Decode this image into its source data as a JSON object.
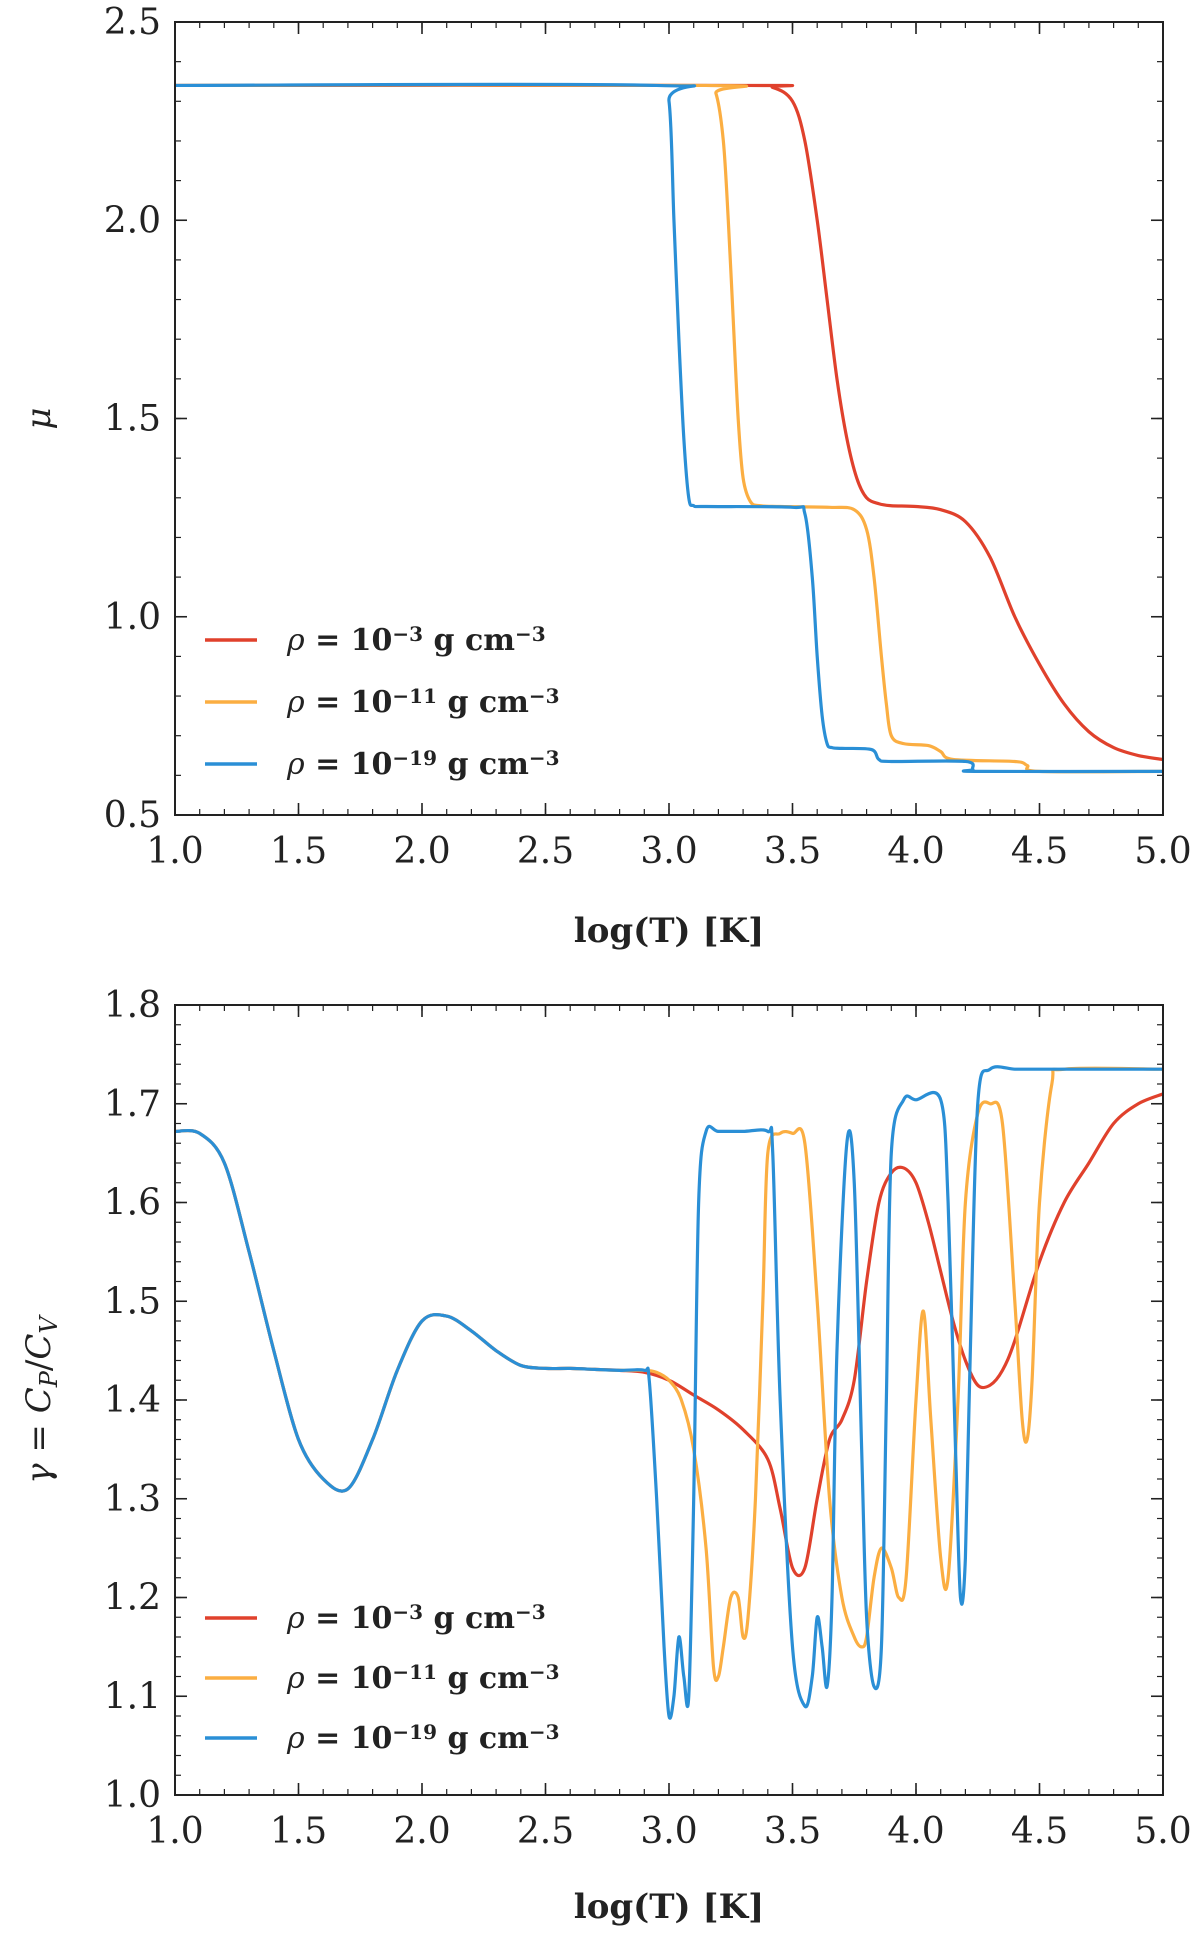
{
  "chart_data": [
    {
      "type": "line",
      "id": "top",
      "xlabel": "log(T) [K]",
      "ylabel": "μ",
      "xlim": [
        1.0,
        5.0
      ],
      "ylim": [
        0.5,
        2.5
      ],
      "xticks": [
        "1.0",
        "1.5",
        "2.0",
        "2.5",
        "3.0",
        "3.5",
        "4.0",
        "4.5",
        "5.0"
      ],
      "yticks": [
        "0.5",
        "1.0",
        "1.5",
        "2.0",
        "2.5"
      ],
      "legend_position": "lower-left",
      "series": [
        {
          "name": "ρ = 10^−3 g cm^−3",
          "rho": "ρ",
          "eq": " = ",
          "base": "10",
          "exp": "−3",
          "unit": " g cm",
          "unitexp": "−3",
          "color": "#e0412c",
          "x": [
            1.0,
            3.3,
            3.42,
            3.5,
            3.55,
            3.6,
            3.64,
            3.68,
            3.72,
            3.76,
            3.8,
            3.85,
            3.9,
            4.0,
            4.1,
            4.2,
            4.3,
            4.4,
            4.5,
            4.6,
            4.7,
            4.8,
            4.9,
            5.0
          ],
          "y": [
            2.34,
            2.34,
            2.335,
            2.3,
            2.2,
            2.0,
            1.8,
            1.6,
            1.45,
            1.35,
            1.3,
            1.285,
            1.28,
            1.278,
            1.27,
            1.24,
            1.15,
            1.0,
            0.88,
            0.78,
            0.71,
            0.67,
            0.65,
            0.64
          ]
        },
        {
          "name": "ρ = 10^−11 g cm^−3",
          "rho": "ρ",
          "eq": " = ",
          "base": "10",
          "exp": "−11",
          "unit": " g cm",
          "unitexp": "−3",
          "color": "#fbae42",
          "x": [
            1.0,
            3.15,
            3.19,
            3.22,
            3.24,
            3.26,
            3.28,
            3.3,
            3.33,
            3.37,
            3.45,
            3.65,
            3.75,
            3.8,
            3.83,
            3.86,
            3.88,
            3.9,
            3.95,
            4.05,
            4.1,
            4.15,
            4.4,
            4.45,
            4.5,
            5.0
          ],
          "y": [
            2.34,
            2.34,
            2.32,
            2.2,
            2.0,
            1.75,
            1.5,
            1.35,
            1.29,
            1.28,
            1.278,
            1.276,
            1.27,
            1.22,
            1.1,
            0.9,
            0.78,
            0.7,
            0.68,
            0.675,
            0.66,
            0.64,
            0.635,
            0.625,
            0.61,
            0.61
          ]
        },
        {
          "name": "ρ = 10^−19 g cm^−3",
          "rho": "ρ",
          "eq": " = ",
          "base": "10",
          "exp": "−19",
          "unit": " g cm",
          "unitexp": "−3",
          "color": "#2a8fd6",
          "x": [
            1.0,
            2.95,
            3.0,
            3.02,
            3.04,
            3.06,
            3.08,
            3.1,
            3.15,
            3.5,
            3.55,
            3.58,
            3.6,
            3.62,
            3.64,
            3.66,
            3.7,
            3.82,
            3.85,
            3.9,
            4.2,
            4.23,
            4.25,
            5.0
          ],
          "y": [
            2.34,
            2.34,
            2.3,
            2.0,
            1.7,
            1.45,
            1.3,
            1.28,
            1.278,
            1.276,
            1.26,
            1.1,
            0.9,
            0.75,
            0.68,
            0.67,
            0.668,
            0.665,
            0.64,
            0.635,
            0.635,
            0.615,
            0.61,
            0.61
          ]
        }
      ]
    },
    {
      "type": "line",
      "id": "bottom",
      "xlabel": "log(T) [K]",
      "ylabel": "γ = C_P/C_V",
      "ylabel_parts": {
        "gamma": "γ",
        "eq": " = ",
        "cp": "C",
        "cpsub": "P",
        "slash": "/",
        "cv": "C",
        "cvsub": "V"
      },
      "xlim": [
        1.0,
        5.0
      ],
      "ylim": [
        1.0,
        1.8
      ],
      "xticks": [
        "1.0",
        "1.5",
        "2.0",
        "2.5",
        "3.0",
        "3.5",
        "4.0",
        "4.5",
        "5.0"
      ],
      "yticks": [
        "1.0",
        "1.1",
        "1.2",
        "1.3",
        "1.4",
        "1.5",
        "1.6",
        "1.7",
        "1.8"
      ],
      "legend_position": "lower-left",
      "series": [
        {
          "name": "ρ = 10^−3 g cm^−3",
          "rho": "ρ",
          "eq": " = ",
          "base": "10",
          "exp": "−3",
          "unit": " g cm",
          "unitexp": "−3",
          "color": "#e0412c",
          "x": [
            1.0,
            1.1,
            1.2,
            1.3,
            1.4,
            1.5,
            1.6,
            1.7,
            1.8,
            1.9,
            2.0,
            2.1,
            2.2,
            2.3,
            2.4,
            2.5,
            2.6,
            2.7,
            2.8,
            2.9,
            3.0,
            3.1,
            3.2,
            3.3,
            3.4,
            3.45,
            3.5,
            3.55,
            3.6,
            3.65,
            3.7,
            3.75,
            3.8,
            3.85,
            3.9,
            3.95,
            4.0,
            4.05,
            4.1,
            4.15,
            4.2,
            4.25,
            4.3,
            4.35,
            4.4,
            4.5,
            4.6,
            4.7,
            4.8,
            4.9,
            5.0
          ],
          "y": [
            1.672,
            1.67,
            1.64,
            1.55,
            1.45,
            1.36,
            1.32,
            1.31,
            1.36,
            1.43,
            1.48,
            1.485,
            1.47,
            1.45,
            1.435,
            1.432,
            1.432,
            1.431,
            1.43,
            1.428,
            1.42,
            1.405,
            1.39,
            1.37,
            1.34,
            1.29,
            1.23,
            1.23,
            1.3,
            1.36,
            1.38,
            1.42,
            1.52,
            1.6,
            1.63,
            1.635,
            1.62,
            1.58,
            1.53,
            1.48,
            1.44,
            1.415,
            1.415,
            1.43,
            1.46,
            1.54,
            1.6,
            1.64,
            1.68,
            1.7,
            1.71
          ]
        },
        {
          "name": "ρ = 10^−11 g cm^−3",
          "rho": "ρ",
          "eq": " = ",
          "base": "10",
          "exp": "−11",
          "unit": " g cm",
          "unitexp": "−3",
          "color": "#fbae42",
          "x": [
            1.0,
            1.1,
            1.2,
            1.3,
            1.4,
            1.5,
            1.6,
            1.7,
            1.8,
            1.9,
            2.0,
            2.1,
            2.2,
            2.3,
            2.4,
            2.5,
            2.6,
            2.7,
            2.8,
            2.9,
            2.95,
            3.0,
            3.05,
            3.1,
            3.15,
            3.18,
            3.2,
            3.22,
            3.25,
            3.28,
            3.3,
            3.32,
            3.35,
            3.38,
            3.4,
            3.45,
            3.5,
            3.55,
            3.6,
            3.65,
            3.7,
            3.75,
            3.78,
            3.8,
            3.83,
            3.86,
            3.9,
            3.93,
            3.96,
            4.0,
            4.03,
            4.06,
            4.1,
            4.13,
            4.17,
            4.2,
            4.25,
            4.3,
            4.35,
            4.4,
            4.43,
            4.45,
            4.47,
            4.5,
            4.55,
            4.6,
            5.0
          ],
          "y": [
            1.672,
            1.67,
            1.64,
            1.55,
            1.45,
            1.36,
            1.32,
            1.31,
            1.36,
            1.43,
            1.48,
            1.485,
            1.47,
            1.45,
            1.435,
            1.432,
            1.432,
            1.431,
            1.43,
            1.43,
            1.428,
            1.42,
            1.4,
            1.35,
            1.25,
            1.13,
            1.12,
            1.15,
            1.2,
            1.2,
            1.16,
            1.18,
            1.3,
            1.5,
            1.65,
            1.67,
            1.67,
            1.66,
            1.5,
            1.3,
            1.2,
            1.16,
            1.15,
            1.16,
            1.22,
            1.25,
            1.23,
            1.2,
            1.22,
            1.4,
            1.49,
            1.38,
            1.24,
            1.22,
            1.4,
            1.6,
            1.69,
            1.7,
            1.68,
            1.5,
            1.38,
            1.36,
            1.42,
            1.6,
            1.72,
            1.735,
            1.735
          ]
        },
        {
          "name": "ρ = 10^−19 g cm^−3",
          "rho": "ρ",
          "eq": " = ",
          "base": "10",
          "exp": "−19",
          "unit": " g cm",
          "unitexp": "−3",
          "color": "#2a8fd6",
          "x": [
            1.0,
            1.1,
            1.2,
            1.3,
            1.4,
            1.5,
            1.6,
            1.7,
            1.8,
            1.9,
            2.0,
            2.1,
            2.2,
            2.3,
            2.4,
            2.5,
            2.6,
            2.7,
            2.8,
            2.9,
            2.92,
            2.95,
            2.98,
            3.0,
            3.02,
            3.04,
            3.06,
            3.08,
            3.1,
            3.12,
            3.15,
            3.2,
            3.3,
            3.4,
            3.42,
            3.45,
            3.5,
            3.55,
            3.58,
            3.6,
            3.62,
            3.64,
            3.66,
            3.68,
            3.72,
            3.75,
            3.78,
            3.8,
            3.83,
            3.86,
            3.88,
            3.9,
            3.95,
            4.0,
            4.1,
            4.13,
            4.16,
            4.18,
            4.2,
            4.22,
            4.25,
            4.3,
            4.4,
            4.5,
            5.0
          ],
          "y": [
            1.672,
            1.67,
            1.64,
            1.55,
            1.45,
            1.36,
            1.32,
            1.31,
            1.36,
            1.43,
            1.48,
            1.485,
            1.47,
            1.45,
            1.435,
            1.432,
            1.432,
            1.431,
            1.43,
            1.43,
            1.42,
            1.3,
            1.15,
            1.08,
            1.1,
            1.16,
            1.12,
            1.1,
            1.3,
            1.6,
            1.672,
            1.672,
            1.672,
            1.672,
            1.65,
            1.4,
            1.15,
            1.09,
            1.12,
            1.18,
            1.15,
            1.11,
            1.2,
            1.45,
            1.66,
            1.62,
            1.35,
            1.18,
            1.11,
            1.15,
            1.4,
            1.65,
            1.704,
            1.704,
            1.704,
            1.6,
            1.35,
            1.2,
            1.24,
            1.45,
            1.7,
            1.735,
            1.735,
            1.735,
            1.735
          ]
        }
      ]
    }
  ]
}
